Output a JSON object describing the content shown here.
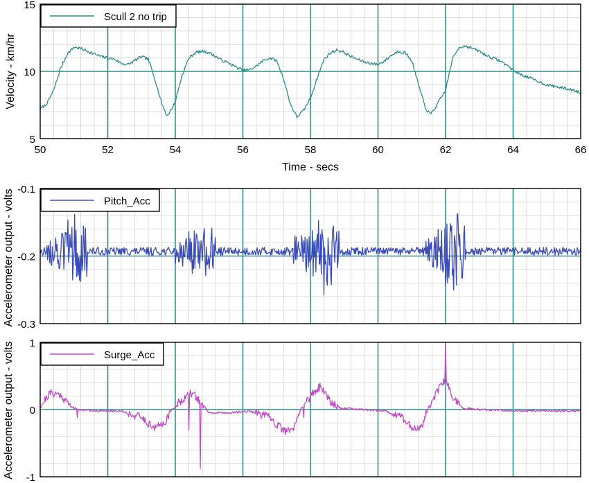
{
  "chart_data": [
    {
      "type": "line",
      "xlabel": "Time - secs",
      "ylabel": "Velocity - km/hr",
      "xlim": [
        50,
        66
      ],
      "ylim": [
        5,
        15
      ],
      "x_ticks": [
        "50",
        "52",
        "54",
        "56",
        "58",
        "60",
        "62",
        "64",
        "66"
      ],
      "y_ticks": [
        "5",
        "10",
        "15"
      ],
      "grid": true,
      "legend_position": "top-left",
      "reference_line": 10,
      "series": [
        {
          "name": "Scull 2 no trip",
          "color": "#2e8b8b",
          "points": [
            [
              50.0,
              7.2
            ],
            [
              50.2,
              7.6
            ],
            [
              50.4,
              8.6
            ],
            [
              50.6,
              10.2
            ],
            [
              50.8,
              11.3
            ],
            [
              51.0,
              11.8
            ],
            [
              51.2,
              11.7
            ],
            [
              51.4,
              11.5
            ],
            [
              51.6,
              11.3
            ],
            [
              51.8,
              11.1
            ],
            [
              52.0,
              11.0
            ],
            [
              52.2,
              10.9
            ],
            [
              52.4,
              10.6
            ],
            [
              52.6,
              10.5
            ],
            [
              52.8,
              10.8
            ],
            [
              53.0,
              11.1
            ],
            [
              53.2,
              10.9
            ],
            [
              53.4,
              9.4
            ],
            [
              53.6,
              7.6
            ],
            [
              53.75,
              6.7
            ],
            [
              53.9,
              7.2
            ],
            [
              54.0,
              7.8
            ],
            [
              54.2,
              9.7
            ],
            [
              54.4,
              11.0
            ],
            [
              54.6,
              11.4
            ],
            [
              54.8,
              11.5
            ],
            [
              55.0,
              11.4
            ],
            [
              55.2,
              11.1
            ],
            [
              55.4,
              10.8
            ],
            [
              55.6,
              10.6
            ],
            [
              55.8,
              10.3
            ],
            [
              56.0,
              10.1
            ],
            [
              56.2,
              10.1
            ],
            [
              56.4,
              10.4
            ],
            [
              56.6,
              10.8
            ],
            [
              56.8,
              11.0
            ],
            [
              57.0,
              10.8
            ],
            [
              57.2,
              9.5
            ],
            [
              57.4,
              7.6
            ],
            [
              57.6,
              6.6
            ],
            [
              57.8,
              7.1
            ],
            [
              58.0,
              8.0
            ],
            [
              58.2,
              9.5
            ],
            [
              58.4,
              10.9
            ],
            [
              58.6,
              11.4
            ],
            [
              58.8,
              11.6
            ],
            [
              59.0,
              11.4
            ],
            [
              59.2,
              11.1
            ],
            [
              59.4,
              10.9
            ],
            [
              59.6,
              10.7
            ],
            [
              59.8,
              10.6
            ],
            [
              60.0,
              10.5
            ],
            [
              60.2,
              10.8
            ],
            [
              60.4,
              11.2
            ],
            [
              60.6,
              11.5
            ],
            [
              60.8,
              11.4
            ],
            [
              61.0,
              10.8
            ],
            [
              61.2,
              9.0
            ],
            [
              61.4,
              7.3
            ],
            [
              61.55,
              6.8
            ],
            [
              61.7,
              7.3
            ],
            [
              62.0,
              8.6
            ],
            [
              62.2,
              10.9
            ],
            [
              62.4,
              11.8
            ],
            [
              62.6,
              11.9
            ],
            [
              62.8,
              11.7
            ],
            [
              63.0,
              11.5
            ],
            [
              63.2,
              11.2
            ],
            [
              63.4,
              11.0
            ],
            [
              63.6,
              10.8
            ],
            [
              63.8,
              10.5
            ],
            [
              64.0,
              10.1
            ],
            [
              64.2,
              9.8
            ],
            [
              64.4,
              9.6
            ],
            [
              64.6,
              9.4
            ],
            [
              64.8,
              9.2
            ],
            [
              65.0,
              9.0
            ],
            [
              65.2,
              8.9
            ],
            [
              65.4,
              8.8
            ],
            [
              65.6,
              8.7
            ],
            [
              65.8,
              8.6
            ],
            [
              66.0,
              8.4
            ]
          ]
        }
      ]
    },
    {
      "type": "line",
      "xlabel": "",
      "ylabel": "Accelerometer output - volts",
      "xlim": [
        50,
        66
      ],
      "ylim": [
        -0.3,
        -0.1
      ],
      "y_ticks": [
        "-0.1",
        "-0.2",
        "-0.3"
      ],
      "grid": true,
      "legend_position": "top-left",
      "reference_line": -0.2,
      "series": [
        {
          "name": "Pitch_Acc",
          "color": "#3b4bb5",
          "baseline": -0.193,
          "bursts": [
            {
              "start": 50.2,
              "end": 51.4,
              "peak": 51.05,
              "amplitude": 0.06
            },
            {
              "start": 54.0,
              "end": 55.2,
              "peak": 54.8,
              "amplitude": 0.05
            },
            {
              "start": 57.5,
              "end": 58.9,
              "peak": 58.4,
              "amplitude": 0.06
            },
            {
              "start": 61.4,
              "end": 62.6,
              "peak": 62.2,
              "amplitude": 0.065
            }
          ]
        }
      ]
    },
    {
      "type": "line",
      "xlabel": "",
      "ylabel": "Accelerometer output - volts",
      "xlim": [
        50,
        66
      ],
      "ylim": [
        -1,
        1
      ],
      "y_ticks": [
        "1",
        "0",
        "-1"
      ],
      "grid": true,
      "legend_position": "top-left",
      "reference_line": 0,
      "series": [
        {
          "name": "Surge_Acc",
          "color": "#c04bc4",
          "envelope": [
            [
              50.0,
              0.05
            ],
            [
              50.3,
              0.25
            ],
            [
              50.6,
              0.22
            ],
            [
              50.9,
              0.05
            ],
            [
              51.1,
              0.0
            ],
            [
              51.8,
              -0.02
            ],
            [
              52.4,
              -0.02
            ],
            [
              53.0,
              -0.12
            ],
            [
              53.4,
              -0.28
            ],
            [
              53.7,
              -0.18
            ],
            [
              53.9,
              0.0
            ],
            [
              54.2,
              0.15
            ],
            [
              54.5,
              0.25
            ],
            [
              54.8,
              0.08
            ],
            [
              55.0,
              -0.05
            ],
            [
              55.6,
              -0.05
            ],
            [
              56.2,
              -0.02
            ],
            [
              56.8,
              -0.12
            ],
            [
              57.2,
              -0.32
            ],
            [
              57.5,
              -0.3
            ],
            [
              57.7,
              0.0
            ],
            [
              58.0,
              0.2
            ],
            [
              58.3,
              0.35
            ],
            [
              58.6,
              0.12
            ],
            [
              58.9,
              0.02
            ],
            [
              59.6,
              0.0
            ],
            [
              60.2,
              -0.02
            ],
            [
              60.7,
              -0.1
            ],
            [
              61.0,
              -0.28
            ],
            [
              61.3,
              -0.25
            ],
            [
              61.5,
              0.05
            ],
            [
              61.8,
              0.3
            ],
            [
              62.0,
              0.45
            ],
            [
              62.2,
              0.2
            ],
            [
              62.5,
              0.02
            ],
            [
              63.0,
              0.0
            ],
            [
              64.0,
              -0.02
            ],
            [
              65.0,
              -0.02
            ],
            [
              66.0,
              -0.02
            ]
          ],
          "spikes": [
            [
              54.75,
              -0.88
            ],
            [
              62.0,
              1.0
            ],
            [
              51.1,
              -0.12
            ],
            [
              54.4,
              -0.3
            ],
            [
              57.8,
              -0.12
            ]
          ]
        }
      ]
    }
  ]
}
